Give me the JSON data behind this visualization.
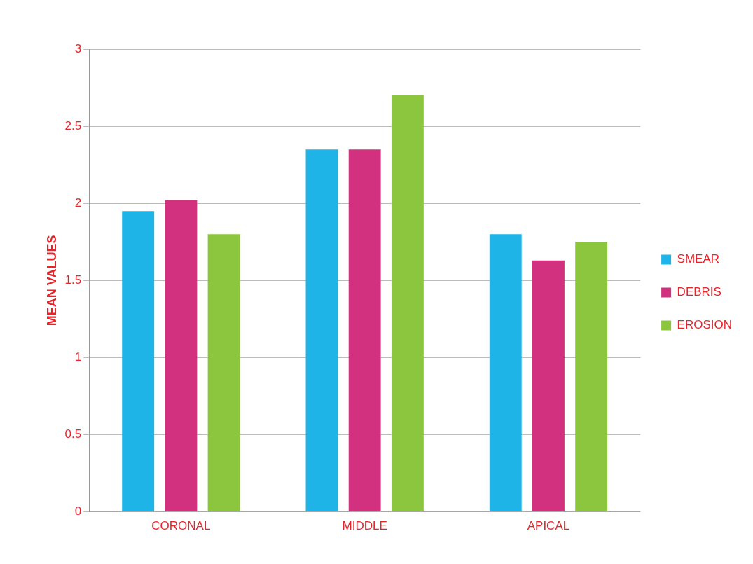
{
  "chart_data": {
    "type": "bar",
    "ylabel": "MEAN VALUES",
    "categories": [
      "CORONAL",
      "MIDDLE",
      "APICAL"
    ],
    "series": [
      {
        "name": "SMEAR",
        "color": "#1fb4e8",
        "values": [
          1.95,
          2.35,
          1.8
        ]
      },
      {
        "name": "DEBRIS",
        "color": "#d1317f",
        "values": [
          2.02,
          2.35,
          1.63
        ]
      },
      {
        "name": "EROSION",
        "color": "#8cc63f",
        "values": [
          1.8,
          2.7,
          1.75
        ]
      }
    ],
    "ylim": [
      0,
      3
    ],
    "yticks": [
      0,
      0.5,
      1,
      1.5,
      2,
      2.5,
      3
    ],
    "grid": "y",
    "legend": "right"
  }
}
